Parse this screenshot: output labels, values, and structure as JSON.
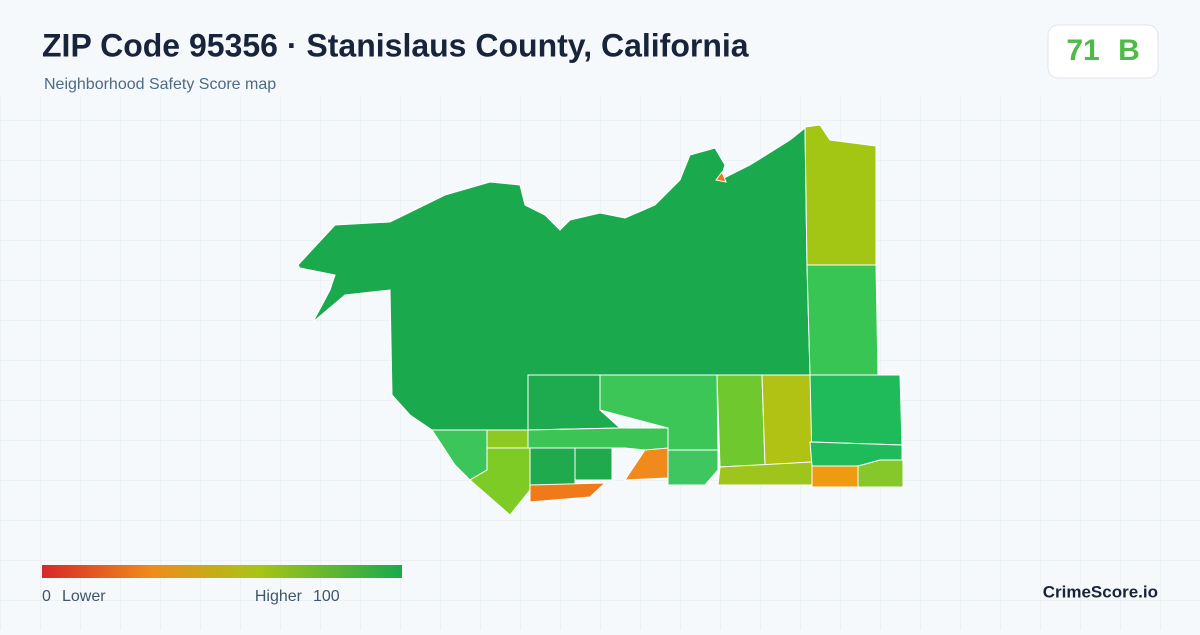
{
  "header": {
    "title": "ZIP Code 95356 · Stanislaus County, California",
    "subtitle": "Neighborhood Safety Score map"
  },
  "score": {
    "value": "71",
    "grade": "B"
  },
  "legend": {
    "min": 0,
    "min_label": "Lower",
    "max_label": "Higher",
    "max": 100
  },
  "brand": "CrimeScore.io"
}
